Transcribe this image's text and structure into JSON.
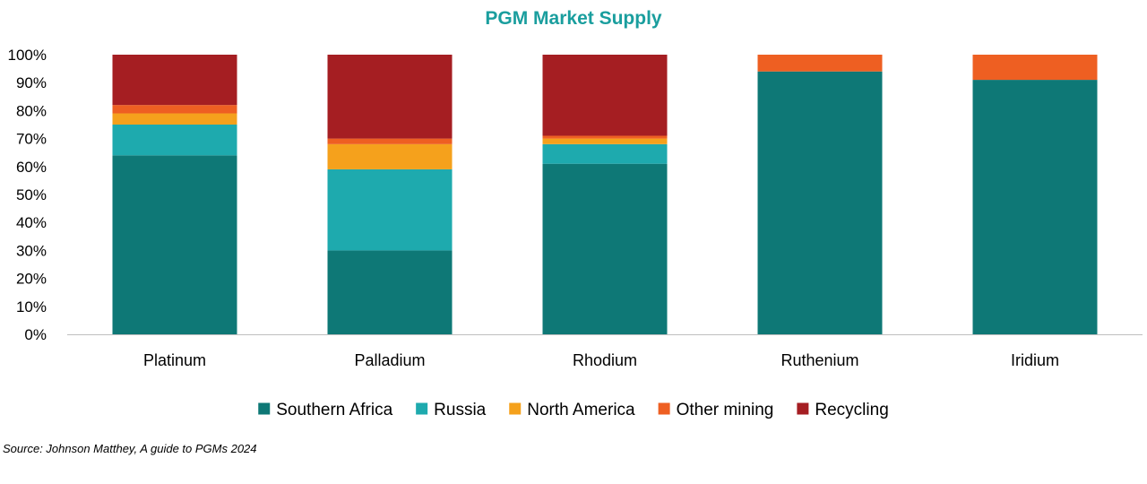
{
  "chart_data": {
    "type": "bar",
    "stacked": true,
    "title": "PGM Market Supply",
    "title_color": "#1A9E9E",
    "categories": [
      "Platinum",
      "Palladium",
      "Rhodium",
      "Ruthenium",
      "Iridium"
    ],
    "series": [
      {
        "name": "Southern Africa",
        "color": "#0E7876",
        "values": [
          64,
          30,
          61,
          94,
          91
        ]
      },
      {
        "name": "Russia",
        "color": "#1EAAAE",
        "values": [
          11,
          29,
          7,
          0,
          0
        ]
      },
      {
        "name": "North America",
        "color": "#F5A11C",
        "values": [
          4,
          9,
          2,
          0,
          0
        ]
      },
      {
        "name": "Other mining",
        "color": "#EE5F22",
        "values": [
          3,
          2,
          1,
          6,
          9
        ]
      },
      {
        "name": "Recycling",
        "color": "#A51E22",
        "values": [
          18,
          30,
          29,
          0,
          0
        ]
      }
    ],
    "ylim": [
      0,
      100
    ],
    "yticks": [
      0,
      10,
      20,
      30,
      40,
      50,
      60,
      70,
      80,
      90,
      100
    ],
    "ytick_labels": [
      "0%",
      "10%",
      "20%",
      "30%",
      "40%",
      "50%",
      "60%",
      "70%",
      "80%",
      "90%",
      "100%"
    ],
    "grid": false,
    "legend_position": "bottom",
    "source": "Source: Johnson Matthey, A guide to PGMs 2024"
  }
}
